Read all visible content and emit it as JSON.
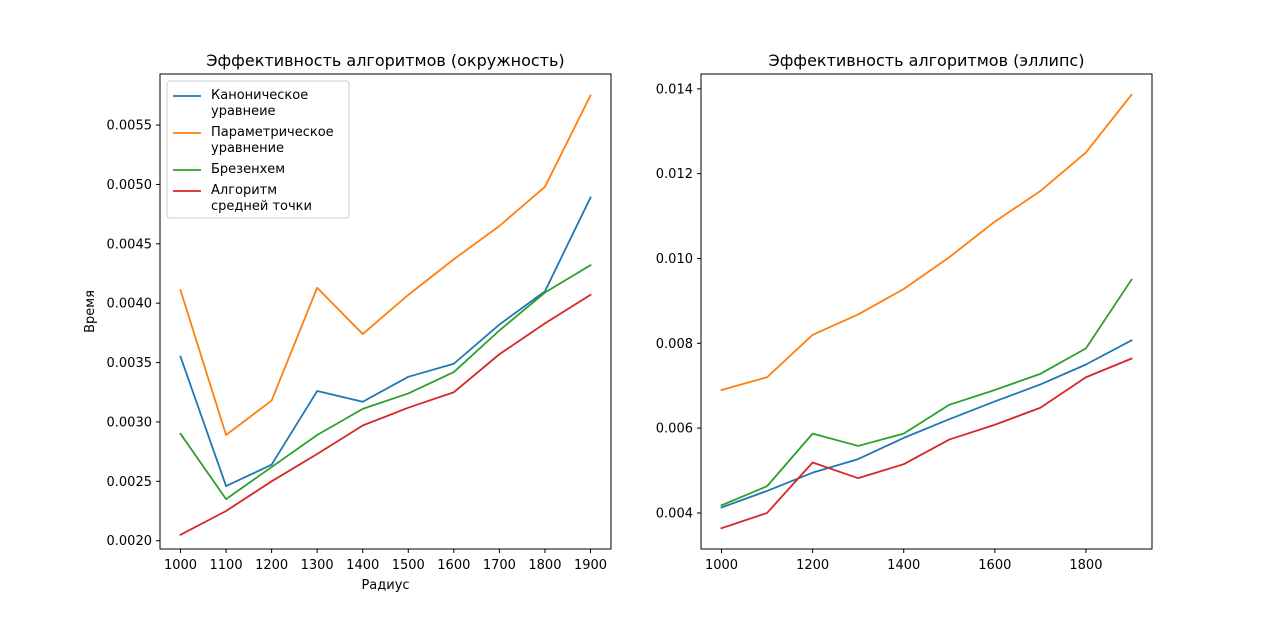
{
  "chart_data": [
    {
      "type": "line",
      "title": "Эффективность алгоритмов (окружность)",
      "xlabel": "Радиус",
      "ylabel": "Время",
      "xlim": [
        955,
        1945
      ],
      "ylim": [
        0.00193,
        0.00593
      ],
      "x": [
        1000,
        1100,
        1200,
        1300,
        1400,
        1500,
        1600,
        1700,
        1800,
        1900
      ],
      "xticks": [
        1000,
        1100,
        1200,
        1300,
        1400,
        1500,
        1600,
        1700,
        1800,
        1900
      ],
      "xtick_labels": [
        "1000",
        "1100",
        "1200",
        "1300",
        "1400",
        "1500",
        "1600",
        "1700",
        "1800",
        "1900"
      ],
      "yticks": [
        0.002,
        0.0025,
        0.003,
        0.0035,
        0.004,
        0.0045,
        0.005,
        0.0055
      ],
      "ytick_labels": [
        "0.0020",
        "0.0025",
        "0.0030",
        "0.0035",
        "0.0040",
        "0.0045",
        "0.0050",
        "0.0055"
      ],
      "legend_position": "top-left",
      "series": [
        {
          "name": "Каноническое\nуравнеие",
          "color": "#1f77b4",
          "values": [
            0.00355,
            0.00246,
            0.00264,
            0.00326,
            0.00317,
            0.00338,
            0.00349,
            0.00382,
            0.0041,
            0.00489
          ]
        },
        {
          "name": "Параметрическое\nуравнение",
          "color": "#ff7f0e",
          "values": [
            0.00411,
            0.00289,
            0.00318,
            0.00413,
            0.00374,
            0.00407,
            0.00437,
            0.00465,
            0.00498,
            0.00575
          ]
        },
        {
          "name": "Брезенхем",
          "color": "#2ca02c",
          "values": [
            0.0029,
            0.00235,
            0.00262,
            0.00289,
            0.00311,
            0.00324,
            0.00342,
            0.00377,
            0.00409,
            0.00432
          ]
        },
        {
          "name": "Алгоритм\nсредней точки",
          "color": "#d62728",
          "values": [
            0.00205,
            0.00225,
            0.0025,
            0.00273,
            0.00297,
            0.00312,
            0.00325,
            0.00357,
            0.00383,
            0.00407
          ]
        }
      ]
    },
    {
      "type": "line",
      "title": "Эффективность алгоритмов (эллипс)",
      "xlabel": "",
      "ylabel": "",
      "xlim": [
        955,
        1945
      ],
      "ylim": [
        0.00315,
        0.01435
      ],
      "x": [
        1000,
        1100,
        1200,
        1300,
        1400,
        1500,
        1600,
        1700,
        1800,
        1900
      ],
      "xticks": [
        1000,
        1200,
        1400,
        1600,
        1800
      ],
      "xtick_labels": [
        "1000",
        "1200",
        "1400",
        "1600",
        "1800"
      ],
      "yticks": [
        0.004,
        0.006,
        0.008,
        0.01,
        0.012,
        0.014
      ],
      "ytick_labels": [
        "0.004",
        "0.006",
        "0.008",
        "0.010",
        "0.012",
        "0.014"
      ],
      "series": [
        {
          "color": "#1f77b4",
          "values": [
            0.00413,
            0.00452,
            0.00495,
            0.00527,
            0.00577,
            0.00621,
            0.00663,
            0.00703,
            0.0075,
            0.00807
          ]
        },
        {
          "color": "#ff7f0e",
          "values": [
            0.0069,
            0.0072,
            0.0082,
            0.00868,
            0.00928,
            0.01003,
            0.01087,
            0.01159,
            0.0125,
            0.01386
          ]
        },
        {
          "color": "#2ca02c",
          "values": [
            0.00418,
            0.00463,
            0.00587,
            0.00558,
            0.00587,
            0.00655,
            0.0069,
            0.00728,
            0.00788,
            0.0095
          ]
        },
        {
          "color": "#d62728",
          "values": [
            0.00364,
            0.004,
            0.00519,
            0.00482,
            0.00515,
            0.00573,
            0.00608,
            0.00648,
            0.0072,
            0.00764
          ]
        }
      ]
    }
  ]
}
